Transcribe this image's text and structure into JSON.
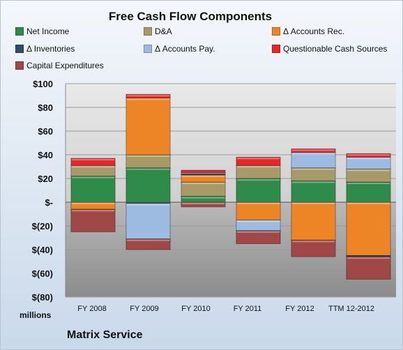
{
  "chart_data": {
    "type": "bar",
    "stacked": true,
    "title": "Free Cash Flow Components",
    "ylabel": "",
    "unit_label": "millions",
    "company": "Matrix Service",
    "ylim": [
      -80,
      100
    ],
    "yticks": [
      100,
      80,
      60,
      40,
      20,
      0,
      -20,
      -40,
      -60,
      -80
    ],
    "ytick_labels": [
      "$100",
      "$80",
      "$60",
      "$40",
      "$20",
      "$-",
      "$(20)",
      "$(40)",
      "$(60)",
      "$(80)"
    ],
    "categories": [
      "FY 2008",
      "FY 2009",
      "FY 2010",
      "FY 2011",
      "FY 2012",
      "TTM 12-2012"
    ],
    "legend_position": "top",
    "series": [
      {
        "name": "Net Income",
        "color": "#2e8b4a",
        "values": [
          22,
          29,
          5,
          20,
          18,
          17
        ]
      },
      {
        "name": "D&A",
        "color": "#a89968",
        "values": [
          9,
          11,
          12,
          11,
          11,
          11
        ]
      },
      {
        "name": "Δ Accounts Rec.",
        "color": "#ed8526",
        "values": [
          -6,
          48,
          6,
          -15,
          -32,
          -45
        ]
      },
      {
        "name": "Δ Inventories",
        "color": "#2f4d6b",
        "values": [
          0,
          -1,
          1,
          0,
          0,
          -1
        ]
      },
      {
        "name": "Δ Accounts Pay.",
        "color": "#9dbbe0",
        "values": [
          0,
          -30,
          1,
          -9,
          13,
          10
        ]
      },
      {
        "name": "Questionable Cash Sources",
        "color": "#e5262b",
        "values": [
          6,
          3,
          2,
          7,
          3,
          3
        ]
      },
      {
        "name": "Capital Expenditures",
        "color": "#a04848",
        "values": [
          -19,
          -9,
          -4,
          -11,
          -14,
          -19
        ]
      }
    ]
  }
}
